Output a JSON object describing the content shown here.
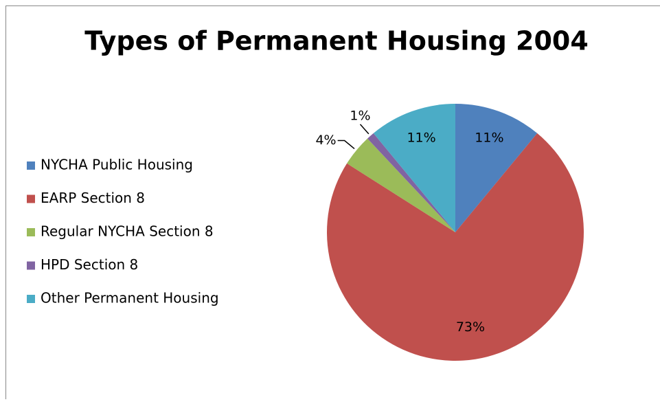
{
  "chart_data": {
    "type": "pie",
    "title": "Types of Permanent Housing 2004",
    "categories": [
      "NYCHA Public Housing",
      "EARP Section 8",
      "Regular NYCHA Section 8",
      "HPD Section 8",
      "Other Permanent Housing"
    ],
    "values": [
      11,
      73,
      4,
      1,
      11
    ],
    "value_labels": [
      "11%",
      "73%",
      "4%",
      "1%",
      "11%"
    ],
    "colors": [
      "#4f81bd",
      "#c0504d",
      "#9bbb59",
      "#8064a2",
      "#4bacc6"
    ],
    "legend": "left"
  }
}
